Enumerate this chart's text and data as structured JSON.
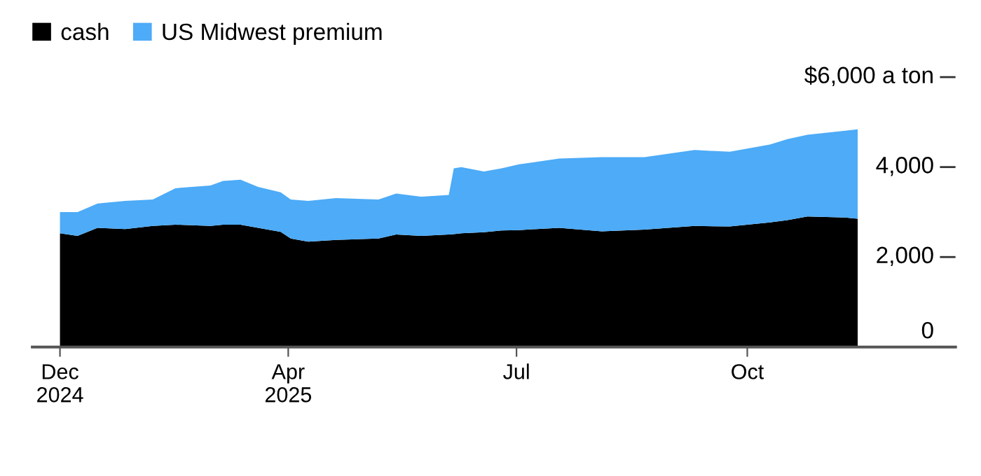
{
  "chart_data": {
    "type": "area",
    "stacked": true,
    "legend": "top left",
    "grid": false,
    "x": [
      "2024-12-31",
      "2025-01-07",
      "2025-01-15",
      "2025-01-26",
      "2025-02-06",
      "2025-02-15",
      "2025-03-01",
      "2025-03-06",
      "2025-03-13",
      "2025-03-20",
      "2025-03-29",
      "2025-04-02",
      "2025-04-09",
      "2025-04-20",
      "2025-05-07",
      "2025-05-14",
      "2025-05-24",
      "2025-06-04",
      "2025-06-06",
      "2025-06-09",
      "2025-06-18",
      "2025-06-25",
      "2025-07-02",
      "2025-07-18",
      "2025-08-04",
      "2025-08-21",
      "2025-09-10",
      "2025-09-24",
      "2025-10-10",
      "2025-10-17",
      "2025-10-25",
      "2025-11-09",
      "2025-11-14"
    ],
    "series": [
      {
        "name": "cash",
        "color": "#000000",
        "values": [
          2530,
          2470,
          2650,
          2620,
          2690,
          2720,
          2690,
          2720,
          2720,
          2650,
          2560,
          2410,
          2340,
          2380,
          2410,
          2500,
          2470,
          2500,
          2510,
          2530,
          2550,
          2590,
          2600,
          2650,
          2570,
          2610,
          2690,
          2680,
          2770,
          2820,
          2900,
          2880,
          2850
        ]
      },
      {
        "name": "US Midwest premium",
        "color": "#4dabf7",
        "values": [
          470,
          530,
          540,
          630,
          590,
          810,
          900,
          970,
          1000,
          910,
          880,
          870,
          910,
          930,
          870,
          910,
          870,
          880,
          1460,
          1470,
          1350,
          1380,
          1460,
          1540,
          1650,
          1610,
          1690,
          1660,
          1730,
          1800,
          1820,
          1930,
          1990
        ]
      }
    ],
    "xlim": [
      "2024-12-20",
      "2025-12-23"
    ],
    "xticks": [
      {
        "value": "2024-12-31",
        "label": "Dec\n2024"
      },
      {
        "value": "2025-04-01",
        "label": "Apr\n2025"
      },
      {
        "value": "2025-07-01",
        "label": "Jul"
      },
      {
        "value": "2025-10-01",
        "label": "Oct"
      }
    ],
    "ylim": [
      0,
      6000
    ],
    "yticks": [
      {
        "value": 0,
        "label": "0"
      },
      {
        "value": 2000,
        "label": "2,000"
      },
      {
        "value": 4000,
        "label": "4,000"
      },
      {
        "value": 6000,
        "label": "$6,000 a ton"
      }
    ]
  }
}
